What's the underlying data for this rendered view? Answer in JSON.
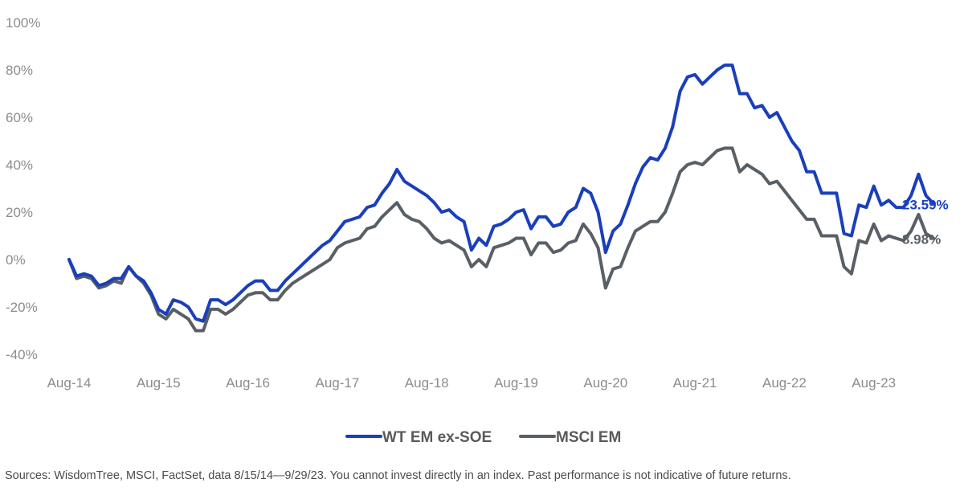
{
  "chart_data": {
    "type": "line",
    "title": "",
    "xlabel": "",
    "ylabel": "",
    "y_unit": "%",
    "ylim": [
      -40,
      100
    ],
    "y_ticks": [
      -40,
      -20,
      0,
      20,
      40,
      60,
      80,
      100
    ],
    "y_tick_labels": [
      "-40%",
      "-20%",
      "0%",
      "20%",
      "40%",
      "60%",
      "80%",
      "100%"
    ],
    "x_tick_labels": [
      "Aug-14",
      "Aug-15",
      "Aug-16",
      "Aug-17",
      "Aug-18",
      "Aug-19",
      "Aug-20",
      "Aug-21",
      "Aug-22",
      "Aug-23"
    ],
    "x_period_start": "2014-08",
    "x_period_end": "2023-09",
    "x_step": "1 month",
    "grid": false,
    "legend_position": "bottom-center",
    "series": [
      {
        "name": "WT EM ex-SOE",
        "color": "#1a3fbb",
        "end_label": "23.59%",
        "values": [
          0,
          -7,
          -6,
          -7,
          -11,
          -10,
          -8,
          -8,
          -3,
          -7,
          -9,
          -14,
          -21,
          -23,
          -17,
          -18,
          -20,
          -25,
          -26,
          -17,
          -17,
          -19,
          -17,
          -14,
          -11,
          -9,
          -9,
          -13,
          -13,
          -9,
          -6,
          -3,
          0,
          3,
          6,
          8,
          12,
          16,
          17,
          18,
          22,
          23,
          28,
          32,
          38,
          33,
          31,
          29,
          27,
          24,
          20,
          21,
          18,
          16,
          4,
          9,
          6,
          14,
          15,
          17,
          20,
          21,
          13,
          18,
          18,
          14,
          15,
          20,
          22,
          30,
          28,
          20,
          3,
          12,
          15,
          23,
          32,
          39,
          43,
          42,
          47,
          56,
          71,
          77,
          78,
          74,
          77,
          80,
          82,
          82,
          70,
          70,
          64,
          65,
          60,
          62,
          56,
          50,
          46,
          37,
          37,
          28,
          28,
          28,
          11,
          10,
          23,
          22,
          31,
          23,
          25,
          22,
          22,
          27,
          36,
          27,
          23.59
        ]
      },
      {
        "name": "MSCI EM",
        "color": "#595f66",
        "end_label": "8.98%",
        "values": [
          0,
          -8,
          -7,
          -8,
          -12,
          -11,
          -9,
          -10,
          -3,
          -7,
          -10,
          -15,
          -23,
          -25,
          -21,
          -23,
          -25,
          -30,
          -30,
          -21,
          -21,
          -23,
          -21,
          -18,
          -15,
          -14,
          -14,
          -17,
          -17,
          -13,
          -10,
          -8,
          -6,
          -4,
          -2,
          0,
          5,
          7,
          8,
          9,
          13,
          14,
          18,
          21,
          24,
          19,
          17,
          16,
          13,
          9,
          7,
          8,
          6,
          4,
          -3,
          0,
          -3,
          5,
          6,
          7,
          9,
          9,
          2,
          7,
          7,
          3,
          4,
          7,
          8,
          15,
          11,
          5,
          -12,
          -4,
          -3,
          5,
          12,
          14,
          16,
          16,
          20,
          28,
          37,
          40,
          41,
          40,
          43,
          46,
          47,
          47,
          37,
          40,
          38,
          36,
          32,
          33,
          29,
          25,
          21,
          17,
          17,
          10,
          10,
          10,
          -3,
          -6,
          8,
          7,
          15,
          8,
          10,
          9,
          8,
          12,
          19,
          11,
          8.98
        ]
      }
    ]
  },
  "source_note": "Sources: WisdomTree, MSCI, FactSet, data 8/15/14—9/29/23. You cannot invest directly in an index. Past performance is not indicative of future returns."
}
